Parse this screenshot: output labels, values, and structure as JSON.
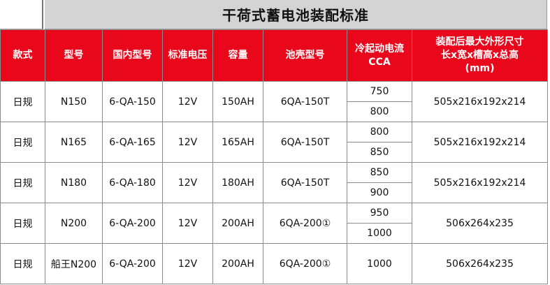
{
  "title": "干荷式蓄电池装配标准",
  "headers": [
    "款式",
    "型号",
    "国内型号",
    "标准电压",
    "容量",
    "池壳型号",
    "冷起动电流\nCCA",
    "装配后最大外形尺寸\n长x宽x槽高x总高\n(mm)"
  ],
  "rows": [
    {
      "style": "日规",
      "model": "N150",
      "domestic": "6-QA-150",
      "voltage": "12V",
      "capacity": "150AH",
      "case": "6QA-150T",
      "cca": [
        "750",
        "800"
      ],
      "dims": "505x216x192x214"
    },
    {
      "style": "日规",
      "model": "N165",
      "domestic": "6-QA-165",
      "voltage": "12V",
      "capacity": "165AH",
      "case": "6QA-150T",
      "cca": [
        "800",
        "850"
      ],
      "dims": "505x216x192x214"
    },
    {
      "style": "日规",
      "model": "N180",
      "domestic": "6-QA-180",
      "voltage": "12V",
      "capacity": "180AH",
      "case": "6QA-150T",
      "cca": [
        "850",
        "900"
      ],
      "dims": "505x216x192x214"
    },
    {
      "style": "日规",
      "model": "N200",
      "domestic": "6-QA-200",
      "voltage": "12V",
      "capacity": "200AH",
      "case": "6QA-200①",
      "cca": [
        "950",
        "1000"
      ],
      "dims": "506x264x235"
    },
    {
      "style": "日规",
      "model": "船王N200",
      "domestic": "6-QA-200",
      "voltage": "12V",
      "capacity": "200AH",
      "case": "6QA-200①",
      "cca": [
        "1000"
      ],
      "dims": "506x264x235"
    }
  ],
  "colors": {
    "header_bg": "#e8071b",
    "title_bg": "#d4d4d4"
  }
}
